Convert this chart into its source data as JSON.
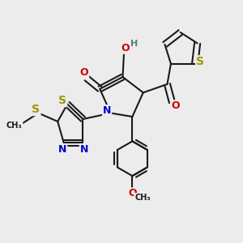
{
  "bg_color": "#ececec",
  "bond_color": "#1a1a1a",
  "bond_width": 1.5,
  "dbo": 0.12,
  "atom_colors": {
    "S": "#999900",
    "N": "#0000cc",
    "O": "#cc0000",
    "H": "#4a8080",
    "C": "#1a1a1a"
  },
  "font_size": 9,
  "figsize": [
    3.0,
    3.0
  ],
  "dpi": 100
}
